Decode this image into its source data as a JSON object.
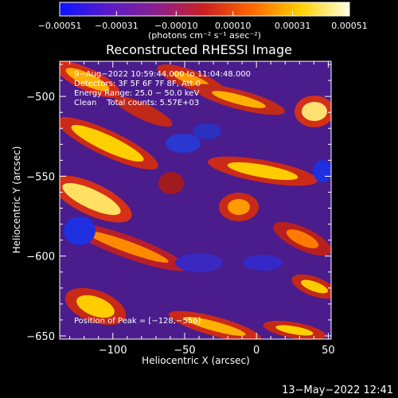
{
  "chart_data": {
    "type": "heatmap",
    "title": "Reconstructed RHESSI Image",
    "xlabel": "Heliocentric X (arcsec)",
    "ylabel": "Heliocentric Y (arcsec)",
    "xlim": [
      -137,
      52
    ],
    "ylim": [
      -652,
      -478
    ],
    "x_ticks": [
      -100,
      -50,
      0,
      50
    ],
    "y_ticks": [
      -650,
      -600,
      -550,
      -500
    ],
    "x_tick_labels": [
      "−100",
      "−50",
      "0",
      "50"
    ],
    "y_tick_labels": [
      "−650",
      "−600",
      "−550",
      "−500"
    ],
    "colorbar": {
      "range": [
        -0.00051,
        0.00051
      ],
      "tick_values": [
        -0.00051,
        -0.00031,
        -0.0001,
        0.0001,
        0.00031,
        0.00051
      ],
      "tick_labels": [
        "−0.00051",
        "−0.00031",
        "−0.00010",
        "0.00010",
        "0.00031",
        "0.00051"
      ],
      "units_label": "(photons cm⁻² s⁻¹ asec⁻²)",
      "colors": [
        "#0b14ff",
        "#5a1cc8",
        "#8a2090",
        "#cc2020",
        "#ff6a00",
        "#ffd000",
        "#ffffe0"
      ]
    },
    "annotations": [
      "9−Aug−2022 10:59:44.000 to 11:04:48.000",
      "Detectors: 3F 5F 6F 7F 8F, Att 0",
      "Energy Range: 25.0 − 50.0 keV",
      "Clean    Total counts: 5.57E+03"
    ],
    "peak_label": "Position of Peak = [−128,−556]",
    "peak": [
      -128,
      -556
    ],
    "grid": false
  },
  "footer": {
    "timestamp": "13−May−2022 12:41"
  }
}
